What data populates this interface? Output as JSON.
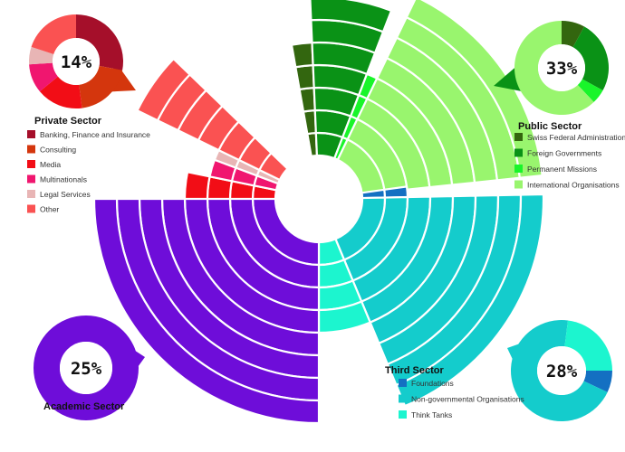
{
  "chart_data": {
    "type": "pie",
    "title": "",
    "sectors": [
      {
        "name": "Private Sector",
        "percent_label": "14%",
        "legend_position": "top-left",
        "categories": [
          {
            "name": "Banking, Finance and Insurance",
            "color": "#a50f2a",
            "share": 0.28,
            "rings": 5
          },
          {
            "name": "Consulting",
            "color": "#d4360d",
            "share": 0.2,
            "rings": 5
          },
          {
            "name": "Media",
            "color": "#f20d16",
            "share": 0.16,
            "rings": 4
          },
          {
            "name": "Multinationals",
            "color": "#f0166f",
            "share": 0.1,
            "rings": 3
          },
          {
            "name": "Legal Services",
            "color": "#e8b5b5",
            "share": 0.06,
            "rings": 3
          },
          {
            "name": "Other",
            "color": "#fa5252",
            "share": 0.2,
            "rings": 7
          }
        ]
      },
      {
        "name": "Public Sector",
        "percent_label": "33%",
        "legend_position": "top-right",
        "categories": [
          {
            "name": "Swiss Federal Administration",
            "color": "#33660f",
            "share": 0.08,
            "rings": 5
          },
          {
            "name": "Foreign Governments",
            "color": "#0a9216",
            "share": 0.25,
            "rings": 7
          },
          {
            "name": "Permanent Missions",
            "color": "#19f52a",
            "share": 0.05,
            "rings": 4
          },
          {
            "name": "International Organisations",
            "color": "#99f56e",
            "share": 0.62,
            "rings": 8
          }
        ]
      },
      {
        "name": "Third Sector",
        "percent_label": "28%",
        "legend_position": "bottom-right",
        "categories": [
          {
            "name": "Foundations",
            "color": "#1470c2",
            "share": 0.07,
            "rings": 2
          },
          {
            "name": "Non-governmental Organisations",
            "color": "#14cccc",
            "share": 0.7,
            "rings": 8
          },
          {
            "name": "Think Tanks",
            "color": "#1cf5cf",
            "share": 0.23,
            "rings": 4
          }
        ]
      },
      {
        "name": "Academic Sector",
        "percent_label": "25%",
        "legend_position": "bottom-left",
        "categories": [
          {
            "name": "Academic",
            "color": "#6e0dd9",
            "share": 1.0,
            "rings": 8
          }
        ]
      }
    ],
    "main_chart_sector_angles": {
      "Private Sector": [
        224,
        314
      ],
      "Public Sector": [
        350,
        84
      ],
      "Third Sector": [
        82,
        180
      ],
      "Academic Sector": [
        180,
        270
      ]
    }
  }
}
